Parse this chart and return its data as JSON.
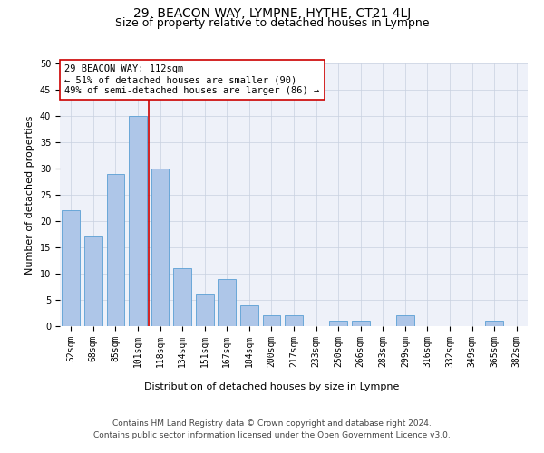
{
  "title": "29, BEACON WAY, LYMPNE, HYTHE, CT21 4LJ",
  "subtitle": "Size of property relative to detached houses in Lympne",
  "xlabel": "Distribution of detached houses by size in Lympne",
  "ylabel": "Number of detached properties",
  "categories": [
    "52sqm",
    "68sqm",
    "85sqm",
    "101sqm",
    "118sqm",
    "134sqm",
    "151sqm",
    "167sqm",
    "184sqm",
    "200sqm",
    "217sqm",
    "233sqm",
    "250sqm",
    "266sqm",
    "283sqm",
    "299sqm",
    "316sqm",
    "332sqm",
    "349sqm",
    "365sqm",
    "382sqm"
  ],
  "values": [
    22,
    17,
    29,
    40,
    30,
    11,
    6,
    9,
    4,
    2,
    2,
    0,
    1,
    1,
    0,
    2,
    0,
    0,
    0,
    1,
    0
  ],
  "bar_color": "#aec6e8",
  "bar_edge_color": "#5a9fd4",
  "bar_width": 0.8,
  "vline_x": 3.5,
  "vline_color": "#cc0000",
  "annotation_line1": "29 BEACON WAY: 112sqm",
  "annotation_line2": "← 51% of detached houses are smaller (90)",
  "annotation_line3": "49% of semi-detached houses are larger (86) →",
  "annotation_box_color": "#ffffff",
  "annotation_box_edge_color": "#cc0000",
  "ylim": [
    0,
    50
  ],
  "yticks": [
    0,
    5,
    10,
    15,
    20,
    25,
    30,
    35,
    40,
    45,
    50
  ],
  "footer_line1": "Contains HM Land Registry data © Crown copyright and database right 2024.",
  "footer_line2": "Contains public sector information licensed under the Open Government Licence v3.0.",
  "bg_color": "#eef1f9",
  "grid_color": "#c8d0e0",
  "title_fontsize": 10,
  "subtitle_fontsize": 9,
  "axis_label_fontsize": 8,
  "tick_fontsize": 7,
  "annotation_fontsize": 7.5,
  "footer_fontsize": 6.5
}
